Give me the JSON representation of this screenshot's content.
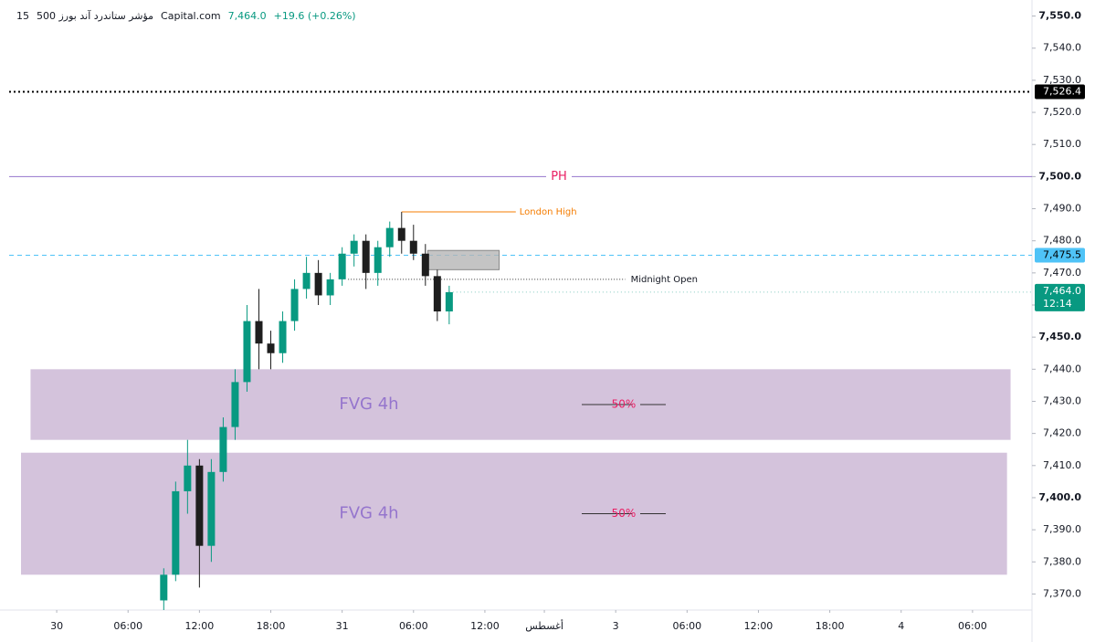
{
  "chart_data": {
    "type": "candlestick",
    "header": {
      "interval": "15",
      "symbol": "مؤشر ستاندرد آند بورز 500",
      "source": "Capital.com",
      "last": "7,464.0",
      "change": "+19.6 (+0.26%)"
    },
    "x": [
      9,
      10,
      11,
      12,
      13,
      14,
      15,
      16,
      17,
      18,
      19,
      20,
      21,
      22,
      23,
      24,
      25,
      26,
      27,
      28,
      29,
      30,
      31,
      32,
      33
    ],
    "open": [
      7368,
      7376,
      7402,
      7410,
      7385,
      7408,
      7422,
      7436,
      7455,
      7448,
      7445,
      7455,
      7465,
      7470,
      7463,
      7468,
      7476,
      7480,
      7470,
      7478,
      7484,
      7480,
      7476,
      7469,
      7458
    ],
    "high": [
      7378,
      7405,
      7418,
      7412,
      7412,
      7425,
      7440,
      7460,
      7465,
      7452,
      7458,
      7468,
      7475,
      7474,
      7470,
      7478,
      7482,
      7482,
      7480,
      7486,
      7489,
      7485,
      7479,
      7471,
      7466
    ],
    "low": [
      7365,
      7374,
      7395,
      7372,
      7380,
      7405,
      7418,
      7433,
      7440,
      7440,
      7442,
      7452,
      7462,
      7460,
      7460,
      7466,
      7472,
      7465,
      7466,
      7475,
      7476,
      7474,
      7466,
      7455,
      7454
    ],
    "close": [
      7376,
      7402,
      7410,
      7385,
      7408,
      7422,
      7436,
      7455,
      7448,
      7445,
      7455,
      7465,
      7470,
      7463,
      7468,
      7476,
      7480,
      7470,
      7478,
      7484,
      7480,
      7476,
      7469,
      7458,
      7464
    ],
    "up_color": "#089981",
    "down_color": "#1e1e1e",
    "xlim": [
      -4,
      82
    ],
    "xticks": [
      {
        "value": 0,
        "label": "30"
      },
      {
        "value": 6,
        "label": "06:00"
      },
      {
        "value": 12,
        "label": "12:00"
      },
      {
        "value": 18,
        "label": "18:00"
      },
      {
        "value": 24,
        "label": "31"
      },
      {
        "value": 30,
        "label": "06:00"
      },
      {
        "value": 36,
        "label": "12:00"
      },
      {
        "value": 41,
        "label": "أغسطس"
      },
      {
        "value": 47,
        "label": "3"
      },
      {
        "value": 53,
        "label": "06:00"
      },
      {
        "value": 59,
        "label": "12:00"
      },
      {
        "value": 65,
        "label": "18:00"
      },
      {
        "value": 71,
        "label": "4"
      },
      {
        "value": 77,
        "label": "06:00"
      }
    ],
    "ylim": [
      7365,
      7555
    ],
    "yticks": [
      {
        "value": 7550,
        "label": "7,550.0"
      },
      {
        "value": 7540,
        "label": "7,540.0"
      },
      {
        "value": 7530,
        "label": "7,530.0"
      },
      {
        "value": 7520,
        "label": "7,520.0"
      },
      {
        "value": 7510,
        "label": "7,510.0"
      },
      {
        "value": 7500,
        "label": "7,500.0"
      },
      {
        "value": 7490,
        "label": "7,490.0"
      },
      {
        "value": 7480,
        "label": "7,480.0"
      },
      {
        "value": 7470,
        "label": "7,470.0"
      },
      {
        "value": 7460,
        "label": "7,460.0"
      },
      {
        "value": 7450,
        "label": "7,450.0"
      },
      {
        "value": 7440,
        "label": "7,440.0"
      },
      {
        "value": 7430,
        "label": "7,430.0"
      },
      {
        "value": 7420,
        "label": "7,420.0"
      },
      {
        "value": 7410,
        "label": "7,410.0"
      },
      {
        "value": 7400,
        "label": "7,400.0"
      },
      {
        "value": 7390,
        "label": "7,390.0"
      },
      {
        "value": 7380,
        "label": "7,380.0"
      },
      {
        "value": 7370,
        "label": "7,370.0"
      }
    ],
    "levels": [
      {
        "value": 7526.4,
        "label": "7,526.4",
        "color": "#000000",
        "style": "dotted"
      },
      {
        "name": "PH",
        "value": 7500,
        "color": "#9575cd",
        "style": "solid"
      },
      {
        "value": 7475.5,
        "label": "7,475.5",
        "color": "#4fc3f7",
        "style": "dashed"
      }
    ],
    "current": {
      "value": 7464.0,
      "label": "7,464.0",
      "countdown": "12:14",
      "color": "#089981"
    },
    "london_high": {
      "name": "London High",
      "value": 7489,
      "x_range": [
        29,
        38.6
      ],
      "color": "#f57c00"
    },
    "midnight_open": {
      "name": "Midnight Open",
      "value": 7468,
      "x_range": [
        24.5,
        47.8
      ]
    },
    "box": {
      "top": 7477,
      "bottom": 7471,
      "x_range": [
        31.2,
        37.2
      ]
    },
    "zones": [
      {
        "name": "FVG 4h",
        "top": 7440,
        "bottom": 7418,
        "mid_label": "50%",
        "x_range": [
          -2.2,
          80.2
        ]
      },
      {
        "name": "FVG 4h",
        "top": 7414,
        "bottom": 7376,
        "mid_label": "50%",
        "x_range": [
          -3,
          79.9
        ]
      }
    ]
  }
}
